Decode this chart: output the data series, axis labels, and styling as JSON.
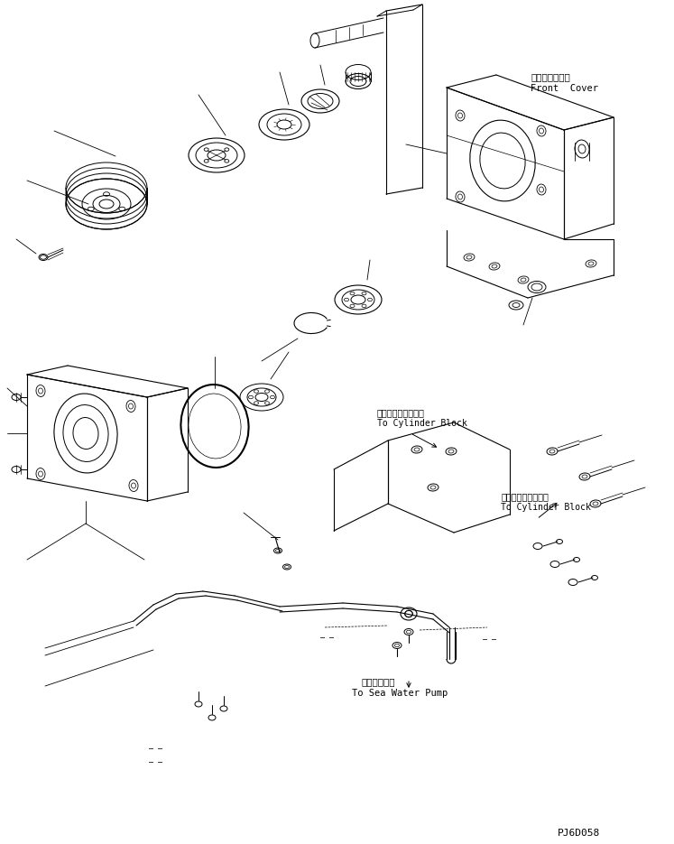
{
  "bg_color": "#ffffff",
  "line_color": "#000000",
  "figsize": [
    7.47,
    9.35
  ],
  "dpi": 100,
  "labels": {
    "front_cover_ja": "フロントカバー",
    "front_cover_en": "Front  Cover",
    "cylinder_block_ja1": "シリンダブロックへ",
    "cylinder_block_en1": "To Cylinder Block",
    "cylinder_block_ja2": "シリンダブロックへ",
    "cylinder_block_en2": "To Cylinder Block",
    "sea_water_pump_ja": "海水ポンプへ",
    "sea_water_pump_en": "To Sea Water Pump",
    "part_number": "PJ6D058"
  }
}
